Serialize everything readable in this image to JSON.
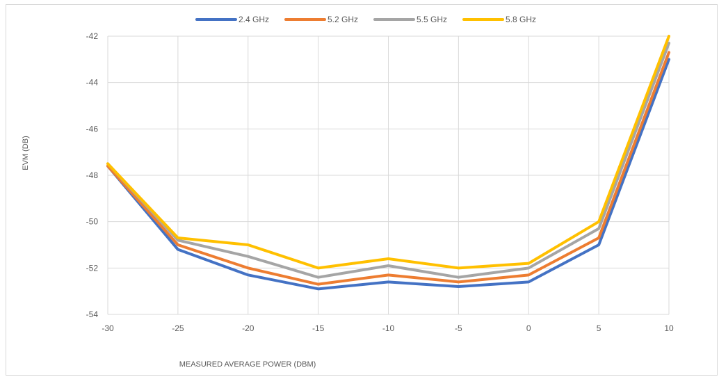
{
  "chart_data": {
    "type": "line",
    "title": "",
    "xlabel": "MEASURED AVERAGE POWER (DBM)",
    "ylabel": "EVM (DB)",
    "x": [
      -30,
      -25,
      -20,
      -15,
      -10,
      -5,
      0,
      5,
      10
    ],
    "x_tick_labels": [
      "-30",
      "-25",
      "-20",
      "-15",
      "-10",
      "-5",
      "0",
      "5",
      "10"
    ],
    "y_tick_labels": [
      "-42",
      "-44",
      "-46",
      "-48",
      "-50",
      "-52",
      "-54"
    ],
    "xlim": [
      -30,
      10
    ],
    "ylim": [
      -54,
      -42
    ],
    "y_ticks": [
      -42,
      -44,
      -46,
      -48,
      -50,
      -52,
      -54
    ],
    "grid": true,
    "legend_position": "top",
    "series": [
      {
        "name": "2.4 GHz",
        "color": "#4472c4",
        "values": [
          -47.6,
          -51.2,
          -52.3,
          -52.9,
          -52.6,
          -52.8,
          -52.6,
          -51.0,
          -43.0
        ]
      },
      {
        "name": "5.2 GHz",
        "color": "#ed7d31",
        "values": [
          -47.6,
          -51.0,
          -52.0,
          -52.7,
          -52.3,
          -52.6,
          -52.3,
          -50.7,
          -42.7
        ]
      },
      {
        "name": "5.5 GHz",
        "color": "#a5a5a5",
        "values": [
          -47.5,
          -50.8,
          -51.5,
          -52.4,
          -51.9,
          -52.4,
          -52.0,
          -50.3,
          -42.3
        ]
      },
      {
        "name": "5.8 GHz",
        "color": "#ffc000",
        "values": [
          -47.5,
          -50.7,
          -51.0,
          -52.0,
          -51.6,
          -52.0,
          -51.8,
          -50.0,
          -42.0
        ]
      }
    ]
  }
}
